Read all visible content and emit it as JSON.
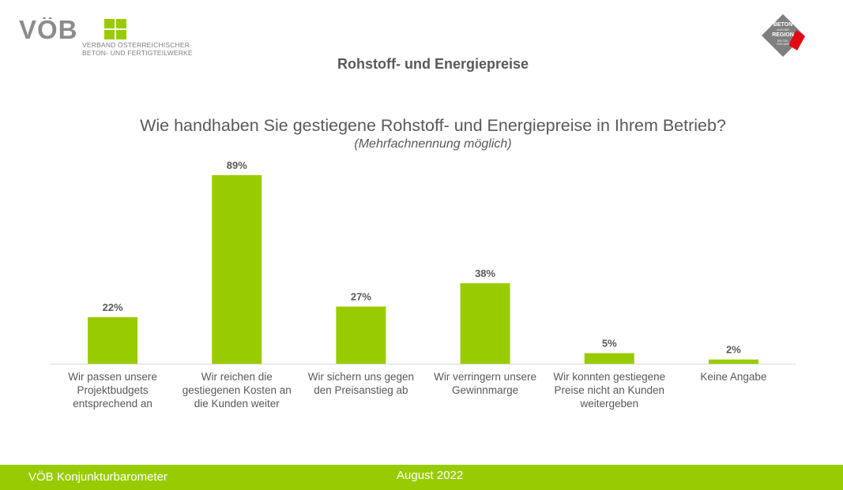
{
  "header": {
    "logo_text": "VÖB",
    "org_name_line1": "VERBAND ÖSTERREICHISCHER",
    "org_name_line2": "BETON- UND FERTIGTEILWERKE",
    "badge_line1": "BETON",
    "badge_line2": "AUS DER",
    "badge_line3": "REGION",
    "badge_line4": "EIN TEIL",
    "badge_line5": "VON UNS",
    "slide_title": "Rohstoff- und Energiepreise"
  },
  "chart_data": {
    "type": "bar",
    "title": "Wie handhaben Sie gestiegene Rohstoff- und Energiepreise in Ihrem Betrieb?",
    "subtitle": "(Mehrfachnennung möglich)",
    "categories": [
      [
        "Wir passen unsere",
        "Projektbudgets",
        "entsprechend an"
      ],
      [
        "Wir reichen die",
        "gestiegenen Kosten an",
        "die Kunden weiter"
      ],
      [
        "Wir sichern uns gegen",
        "den Preisanstieg ab"
      ],
      [
        "Wir verringern unsere",
        "Gewinnmarge"
      ],
      [
        "Wir konnten gestiegene",
        "Preise nicht an Kunden",
        "weitergeben"
      ],
      [
        "Keine Angabe"
      ]
    ],
    "values": [
      22,
      89,
      27,
      38,
      5,
      2
    ],
    "labels": [
      "22%",
      "89%",
      "27%",
      "38%",
      "5%",
      "2%"
    ],
    "ylim": [
      0,
      100
    ],
    "grid": false,
    "bar_color": "#99cc00"
  },
  "footer": {
    "left_text": "VÖB Konjunkturbarometer",
    "center_text": "August 2022"
  },
  "colors": {
    "accent": "#99cc00",
    "text": "#595959"
  }
}
